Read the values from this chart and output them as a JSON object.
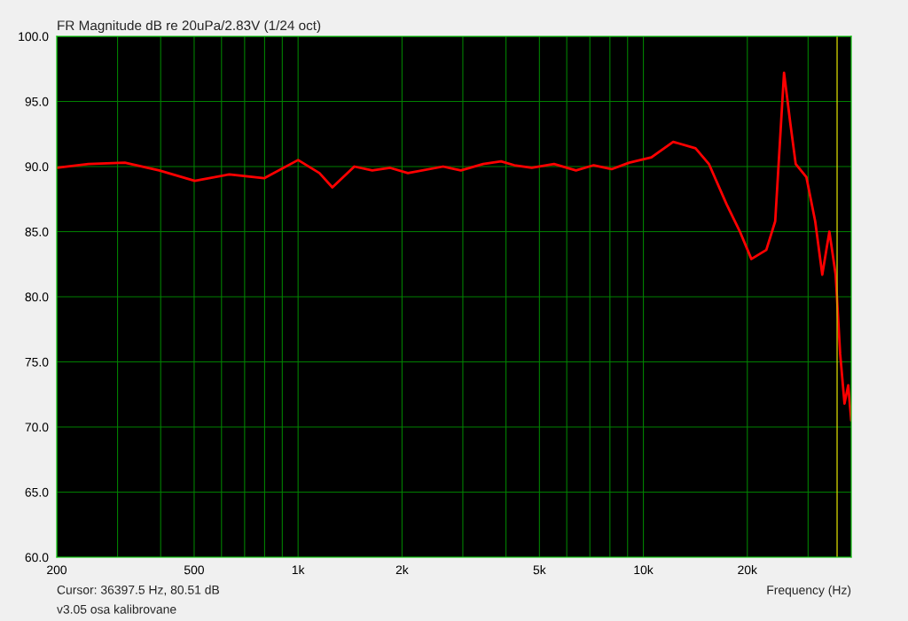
{
  "chart_data": {
    "type": "line",
    "title": "FR Magnitude dB re 20uPa/2.83V (1/24 oct)",
    "xlabel": "Frequency (Hz)",
    "annotations": [
      "Cursor: 36397.5 Hz, 80.51 dB",
      "v3.05 osa kalibrovane"
    ],
    "log": "x",
    "grid": true,
    "legend": false,
    "marker": "none",
    "line_style": "solid",
    "xlim": [
      200,
      40000
    ],
    "xticks": [
      {
        "value": 200,
        "label": "200"
      },
      {
        "value": 300,
        "label": null
      },
      {
        "value": 400,
        "label": null
      },
      {
        "value": 500,
        "label": "500"
      },
      {
        "value": 600,
        "label": null
      },
      {
        "value": 700,
        "label": null
      },
      {
        "value": 800,
        "label": null
      },
      {
        "value": 900,
        "label": null
      },
      {
        "value": 1000,
        "label": "1k"
      },
      {
        "value": 2000,
        "label": "2k"
      },
      {
        "value": 3000,
        "label": null
      },
      {
        "value": 4000,
        "label": null
      },
      {
        "value": 5000,
        "label": "5k"
      },
      {
        "value": 6000,
        "label": null
      },
      {
        "value": 7000,
        "label": null
      },
      {
        "value": 8000,
        "label": null
      },
      {
        "value": 9000,
        "label": null
      },
      {
        "value": 10000,
        "label": "10k"
      },
      {
        "value": 20000,
        "label": "20k"
      },
      {
        "value": 30000,
        "label": null
      }
    ],
    "ylim": [
      60,
      100
    ],
    "yticks": [
      {
        "value": 60,
        "label": "60.0"
      },
      {
        "value": 65,
        "label": "65.0"
      },
      {
        "value": 70,
        "label": "70.0"
      },
      {
        "value": 75,
        "label": "75.0"
      },
      {
        "value": 80,
        "label": "80.0"
      },
      {
        "value": 85,
        "label": "85.0"
      },
      {
        "value": 90,
        "label": "90.0"
      },
      {
        "value": 95,
        "label": "95.0"
      },
      {
        "value": 100,
        "label": "100.0"
      }
    ],
    "ref_lines": [
      {
        "axis": "x",
        "value": 36397.5,
        "color": "#c8c800"
      }
    ],
    "series": [
      {
        "color": "#ff0000",
        "x": [
          200,
          247,
          315,
          396,
          502,
          632,
          797,
          1000,
          1153,
          1257,
          1455,
          1640,
          1848,
          2080,
          2630,
          2960,
          3435,
          3870,
          4230,
          4750,
          5510,
          6380,
          7180,
          8090,
          9100,
          10550,
          12200,
          14160,
          15480,
          17420,
          19040,
          20550,
          22700,
          24090,
          25550,
          26650,
          27620,
          29650,
          31450,
          32970,
          34570,
          36050,
          37150,
          38240,
          39200,
          40000
        ],
        "values": [
          89.9,
          90.2,
          90.3,
          89.7,
          88.9,
          89.4,
          89.1,
          90.5,
          89.5,
          88.4,
          90.0,
          89.7,
          89.9,
          89.5,
          90.0,
          89.7,
          90.2,
          90.4,
          90.1,
          89.9,
          90.2,
          89.7,
          90.1,
          89.8,
          90.3,
          90.7,
          91.9,
          91.4,
          90.2,
          87.1,
          85.0,
          82.9,
          83.6,
          85.8,
          97.2,
          93.3,
          90.2,
          89.2,
          85.8,
          81.7,
          85.0,
          81.7,
          75.6,
          71.8,
          73.2,
          70.5
        ]
      }
    ]
  }
}
